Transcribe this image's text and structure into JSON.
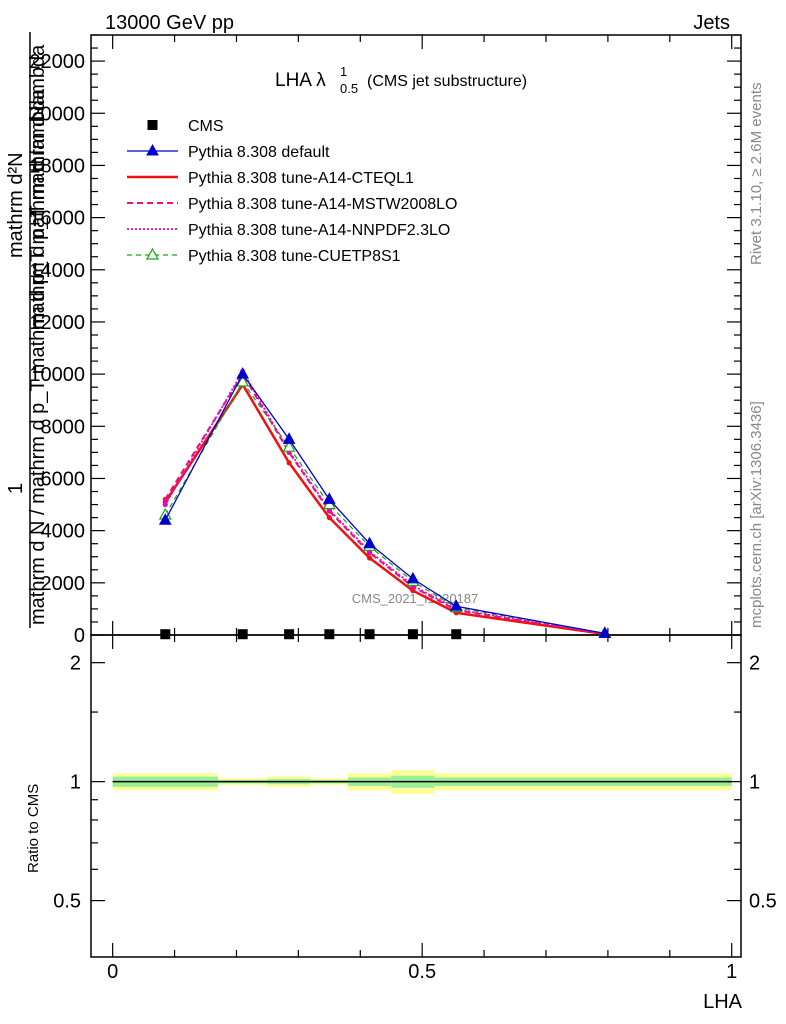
{
  "header": {
    "left": "13000 GeV pp",
    "right": "Jets"
  },
  "side_labels": {
    "rivet": "Rivet 3.1.10, ≥ 2.6M events",
    "mcplots": "mcplots.cern.ch [arXiv:1306.3436]"
  },
  "watermark": "CMS_2021_I1920187",
  "main_title": {
    "text": "LHA λ",
    "sup": "1",
    "sub": "0.5",
    "suffix": "(CMS jet substructure)"
  },
  "y_axis_label": {
    "numerator": "mathrm d²N",
    "fraction_den": "mathrm d p_T mathrm d lambda",
    "overlap_lines": [
      "1",
      "mathrm d N / mathrm d p_T mathrm d p_T mathrm d lambda"
    ]
  },
  "ratio_label": "Ratio to CMS",
  "x_axis_label": "LHA",
  "colors": {
    "cms": "#000000",
    "pythia_default": "#0000cc",
    "cteql1": "#ee1111",
    "mstw": "#ee1177",
    "nnpdf": "#ee00cc",
    "cuetp8s1": "#11aa11",
    "band_yellow": "#ffff99",
    "band_green": "#99ee99"
  },
  "chart_data": [
    {
      "type": "line",
      "x": [
        0.085,
        0.21,
        0.285,
        0.35,
        0.415,
        0.485,
        0.555,
        0.795
      ],
      "xlim": [
        -0.035,
        1.015
      ],
      "ylim": [
        0,
        23000
      ],
      "y_ticks": [
        0,
        2000,
        4000,
        6000,
        8000,
        10000,
        12000,
        14000,
        16000,
        18000,
        20000,
        22000
      ],
      "y_tick_labels": [
        "0",
        "2000",
        "4000",
        "6000",
        "8000",
        "10000",
        "12000",
        "14000",
        "16000",
        "18000",
        "20000",
        "22000"
      ],
      "series": [
        {
          "name": "CMS",
          "style": "square",
          "values": [
            30,
            30,
            30,
            30,
            30,
            30,
            30,
            null
          ]
        },
        {
          "name": "Pythia 8.308 default",
          "style": "solid-triangle",
          "values": [
            4400,
            10000,
            7500,
            5200,
            3500,
            2150,
            1100,
            60
          ]
        },
        {
          "name": "Pythia 8.308 tune-A14-CTEQL1",
          "style": "solid-thick",
          "values": [
            5100,
            9600,
            6600,
            4500,
            2950,
            1700,
            850,
            40
          ]
        },
        {
          "name": "Pythia 8.308 tune-A14-MSTW2008LO",
          "style": "dashed",
          "values": [
            5200,
            10000,
            7000,
            4750,
            3150,
            1850,
            950,
            50
          ]
        },
        {
          "name": "Pythia 8.308 tune-A14-NNPDF2.3LO",
          "style": "dotted",
          "values": [
            5000,
            10100,
            7050,
            4800,
            3200,
            1900,
            980,
            55
          ]
        },
        {
          "name": "Pythia 8.308 tune-CUETP8S1",
          "style": "dashed-open-triangle",
          "values": [
            4600,
            9700,
            7200,
            5000,
            3400,
            2050,
            1050,
            60
          ]
        }
      ]
    },
    {
      "type": "area",
      "xlim": [
        -0.035,
        1.015
      ],
      "ylim": [
        0.36,
        2.35
      ],
      "y_ticks": [
        0.5,
        1,
        2
      ],
      "y_tick_labels": [
        "0.5",
        "1",
        "2"
      ],
      "x_ticks": [
        0,
        0.5,
        1
      ],
      "x_tick_labels": [
        "0",
        "0.5",
        "1"
      ],
      "bins": [
        {
          "x0": 0.0,
          "x1": 0.17,
          "yellow": [
            0.95,
            1.05
          ],
          "green": [
            0.97,
            1.03
          ]
        },
        {
          "x0": 0.17,
          "x1": 0.25,
          "yellow": [
            0.98,
            1.02
          ],
          "green": [
            0.99,
            1.01
          ]
        },
        {
          "x0": 0.25,
          "x1": 0.32,
          "yellow": [
            0.97,
            1.03
          ],
          "green": [
            0.985,
            1.015
          ]
        },
        {
          "x0": 0.32,
          "x1": 0.38,
          "yellow": [
            0.98,
            1.02
          ],
          "green": [
            0.99,
            1.01
          ]
        },
        {
          "x0": 0.38,
          "x1": 0.45,
          "yellow": [
            0.95,
            1.05
          ],
          "green": [
            0.975,
            1.025
          ]
        },
        {
          "x0": 0.45,
          "x1": 0.52,
          "yellow": [
            0.93,
            1.07
          ],
          "green": [
            0.965,
            1.035
          ]
        },
        {
          "x0": 0.52,
          "x1": 1.0,
          "yellow": [
            0.95,
            1.05
          ],
          "green": [
            0.975,
            1.025
          ]
        }
      ],
      "reference": 1
    }
  ]
}
